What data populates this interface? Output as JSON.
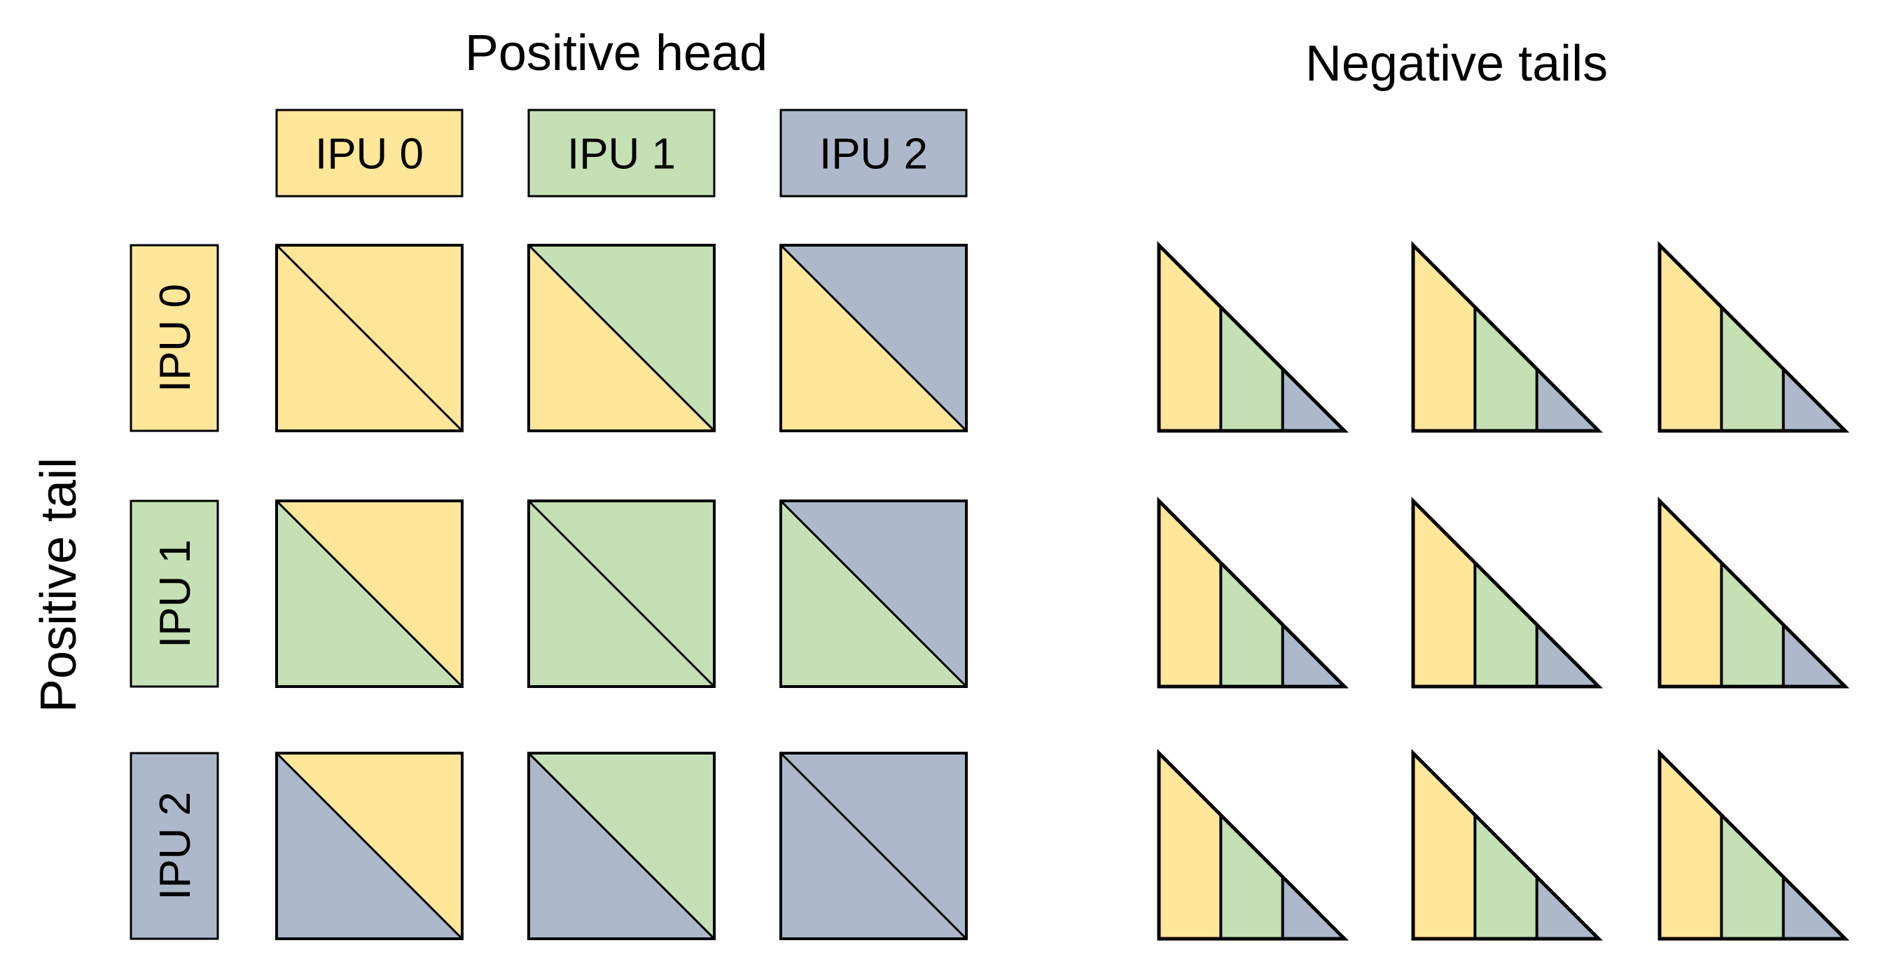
{
  "titles": {
    "positive_head": "Positive head",
    "negative_tails": "Negative tails",
    "positive_tail": "Positive tail"
  },
  "ipus": [
    {
      "label": "IPU 0",
      "color": "#ffe699"
    },
    {
      "label": "IPU 1",
      "color": "#c5e0b4"
    },
    {
      "label": "IPU 2",
      "color": "#adb9ca"
    }
  ],
  "stroke_color": "#000000"
}
